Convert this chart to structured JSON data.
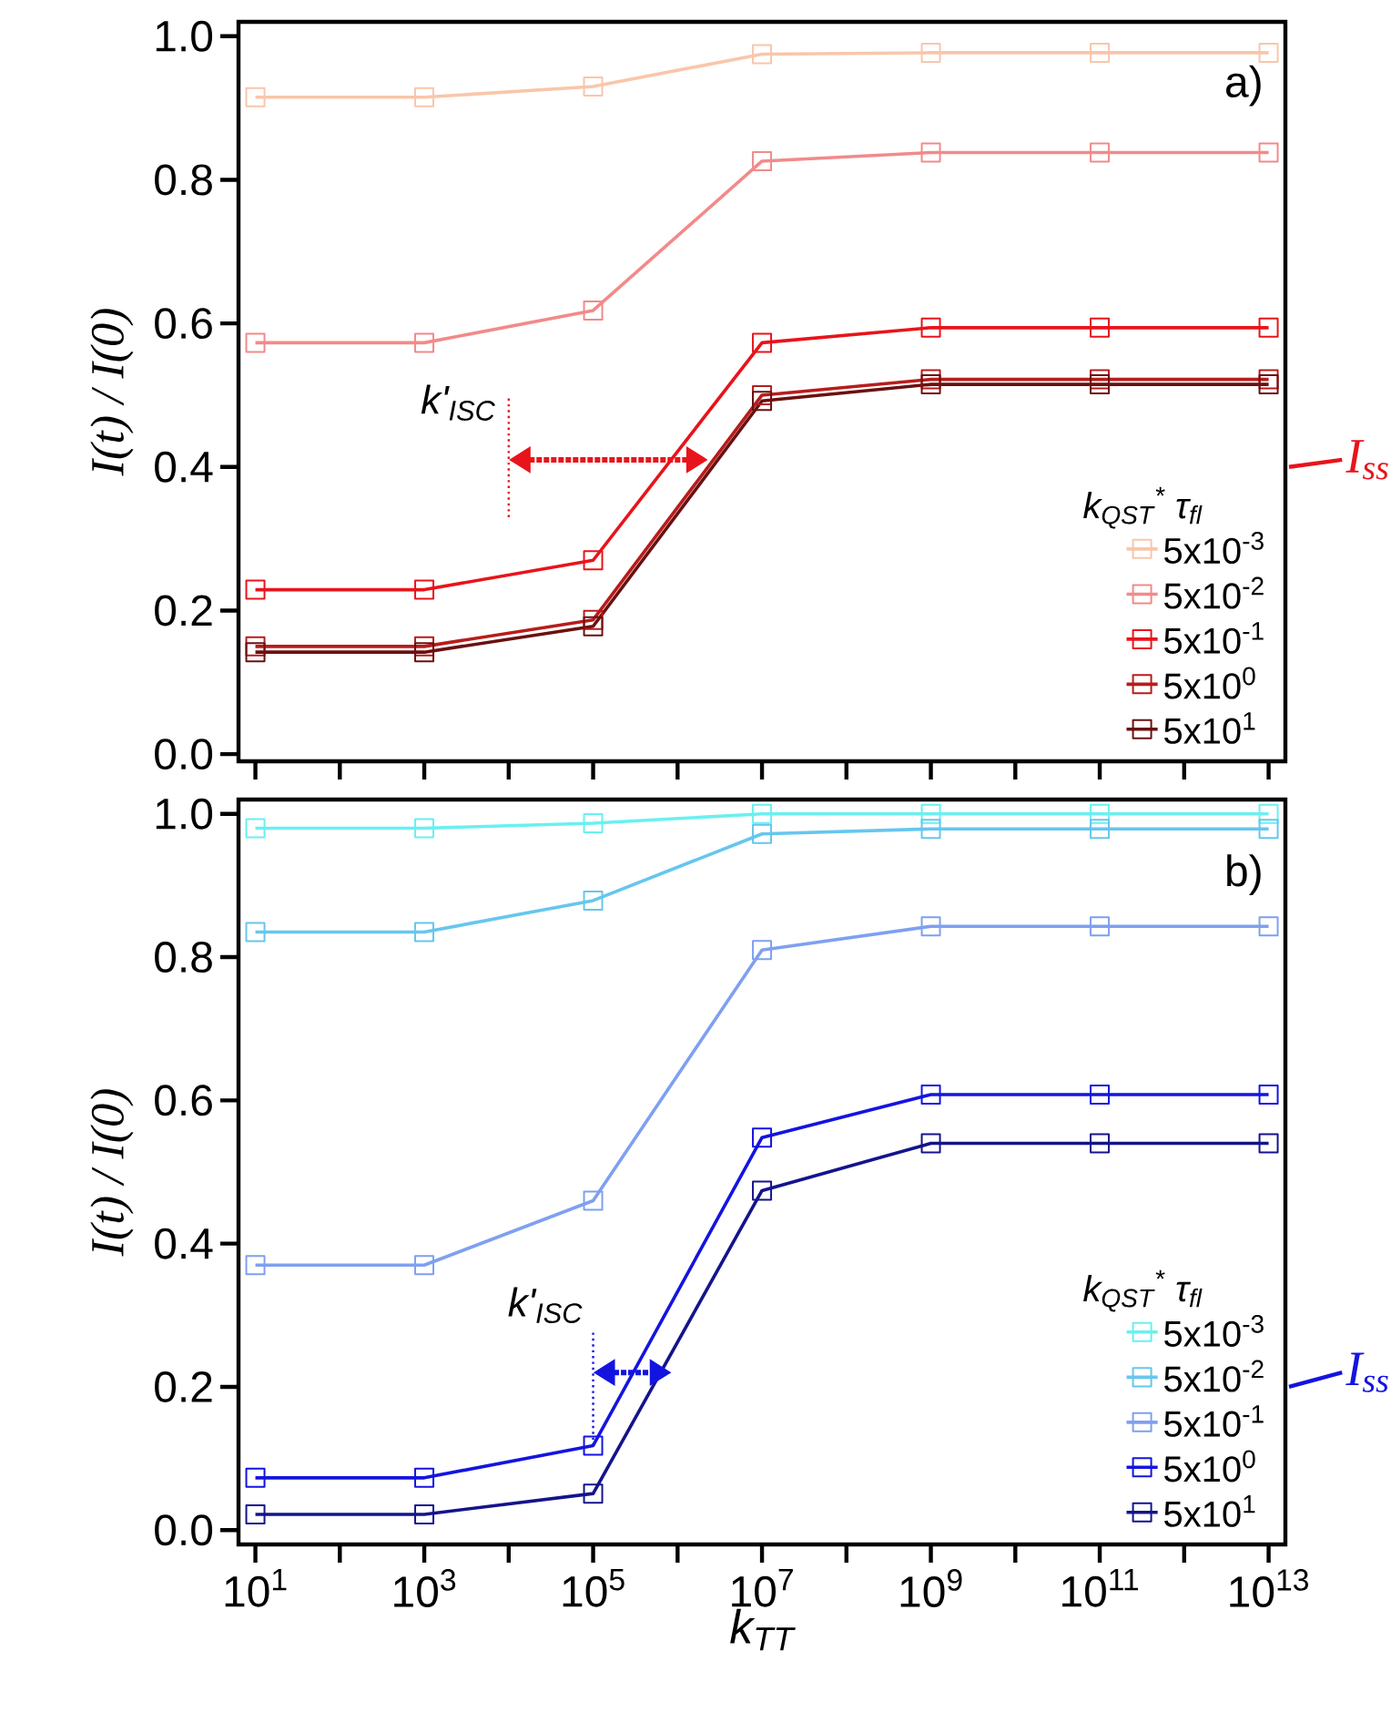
{
  "chart_data": [
    {
      "type": "line",
      "ylabel": "I(t) / I(0)",
      "legend_title": "k$_{QST}$$^{*}$ τ$_{fl}$",
      "log": "x",
      "marker": "square",
      "legend": "bottom right",
      "tick_labels": "y",
      "annotations": [
        "a)",
        "k'$_{ISC}$",
        "I$_{ss}$"
      ],
      "xlim": [
        6.31,
        15800000000000.0
      ],
      "ylim": [
        -0.01,
        1.02
      ],
      "xticks": [
        {
          "value": 10,
          "label": null
        },
        {
          "value": 100,
          "label": null
        },
        {
          "value": 1000,
          "label": null
        },
        {
          "value": 10000,
          "label": null
        },
        {
          "value": 100000,
          "label": null
        },
        {
          "value": 1000000,
          "label": null
        },
        {
          "value": 10000000,
          "label": null
        },
        {
          "value": 100000000,
          "label": null
        },
        {
          "value": 1000000000,
          "label": null
        },
        {
          "value": 10000000000,
          "label": null
        },
        {
          "value": 100000000000,
          "label": null
        },
        {
          "value": 1000000000000,
          "label": null
        },
        {
          "value": 10000000000000,
          "label": null
        }
      ],
      "yticks": [
        {
          "value": 0,
          "label": "0.0"
        },
        {
          "value": 0.2,
          "label": "0.2"
        },
        {
          "value": 0.4,
          "label": "0.4"
        },
        {
          "value": 0.6,
          "label": "0.6"
        },
        {
          "value": 0.8,
          "label": "0.8"
        },
        {
          "value": 1,
          "label": "1.0"
        }
      ],
      "x": [
        10,
        1000,
        100000,
        10000000,
        1000000000,
        100000000000,
        10000000000000
      ],
      "series": [
        {
          "name": "5x10$^{-3}$",
          "color": "#f9c6aa",
          "values": [
            0.915,
            0.915,
            0.93,
            0.975,
            0.977,
            0.977,
            0.977
          ]
        },
        {
          "name": "5x10$^{-2}$",
          "color": "#f28a8a",
          "values": [
            0.573,
            0.573,
            0.618,
            0.826,
            0.838,
            0.838,
            0.838
          ]
        },
        {
          "name": "5x10$^{-1}$",
          "color": "#e8141b",
          "values": [
            0.229,
            0.229,
            0.27,
            0.573,
            0.594,
            0.594,
            0.594
          ]
        },
        {
          "name": "5x10$^{0}$",
          "color": "#b81c1c",
          "values": [
            0.15,
            0.15,
            0.187,
            0.5,
            0.522,
            0.522,
            0.522
          ]
        },
        {
          "name": "5x10$^{1}$",
          "color": "#6b1010",
          "values": [
            0.142,
            0.142,
            0.178,
            0.492,
            0.515,
            0.515,
            0.515
          ]
        }
      ]
    },
    {
      "type": "line",
      "xlabel": "k$_{TT}$",
      "ylabel": "I(t) / I(0)",
      "legend_title": "k$_{QST}$$^{*}$ τ$_{fl}$",
      "log": "x",
      "marker": "square",
      "legend": "bottom right",
      "annotations": [
        "b)",
        {
          "text": "k'$_{ISC}$",
          "x": 100000,
          "y": 0.118
        },
        "I$_{ss}$"
      ],
      "xlim": [
        6.31,
        15800000000000.0
      ],
      "ylim": [
        -0.02,
        1.02
      ],
      "xticks": [
        {
          "value": 10,
          "label": "10$^{1}$"
        },
        {
          "value": 100,
          "label": null
        },
        {
          "value": 1000,
          "label": "10$^{3}$"
        },
        {
          "value": 10000,
          "label": null
        },
        {
          "value": 100000,
          "label": "10$^{5}$"
        },
        {
          "value": 1000000,
          "label": null
        },
        {
          "value": 10000000,
          "label": "10$^{7}$"
        },
        {
          "value": 100000000,
          "label": null
        },
        {
          "value": 1000000000,
          "label": "10$^{9}$"
        },
        {
          "value": 10000000000,
          "label": null
        },
        {
          "value": 100000000000,
          "label": "10$^{11}$"
        },
        {
          "value": 1000000000000,
          "label": null
        },
        {
          "value": 10000000000000,
          "label": "10$^{13}$"
        }
      ],
      "yticks": [
        {
          "value": 0,
          "label": "0.0"
        },
        {
          "value": 0.2,
          "label": "0.2"
        },
        {
          "value": 0.4,
          "label": "0.4"
        },
        {
          "value": 0.6,
          "label": "0.6"
        },
        {
          "value": 0.8,
          "label": "0.8"
        },
        {
          "value": 1,
          "label": "1.0"
        }
      ],
      "x": [
        10,
        1000,
        100000,
        10000000,
        1000000000,
        100000000000,
        10000000000000
      ],
      "series": [
        {
          "name": "5x10$^{-3}$",
          "color": "#6af0f0",
          "values": [
            0.98,
            0.98,
            0.987,
            1.0,
            1.0,
            1.0,
            1.0
          ]
        },
        {
          "name": "5x10$^{-2}$",
          "color": "#66c6ee",
          "values": [
            0.835,
            0.835,
            0.879,
            0.972,
            0.979,
            0.979,
            0.979
          ]
        },
        {
          "name": "5x10$^{-1}$",
          "color": "#7fa0f0",
          "values": [
            0.37,
            0.37,
            0.46,
            0.81,
            0.843,
            0.843,
            0.843
          ]
        },
        {
          "name": "5x10$^{0}$",
          "color": "#1414e0",
          "values": [
            0.073,
            0.073,
            0.118,
            0.548,
            0.608,
            0.608,
            0.608
          ]
        },
        {
          "name": "5x10$^{1}$",
          "color": "#14148c",
          "values": [
            0.022,
            0.022,
            0.051,
            0.474,
            0.54,
            0.54,
            0.54
          ]
        }
      ]
    }
  ]
}
